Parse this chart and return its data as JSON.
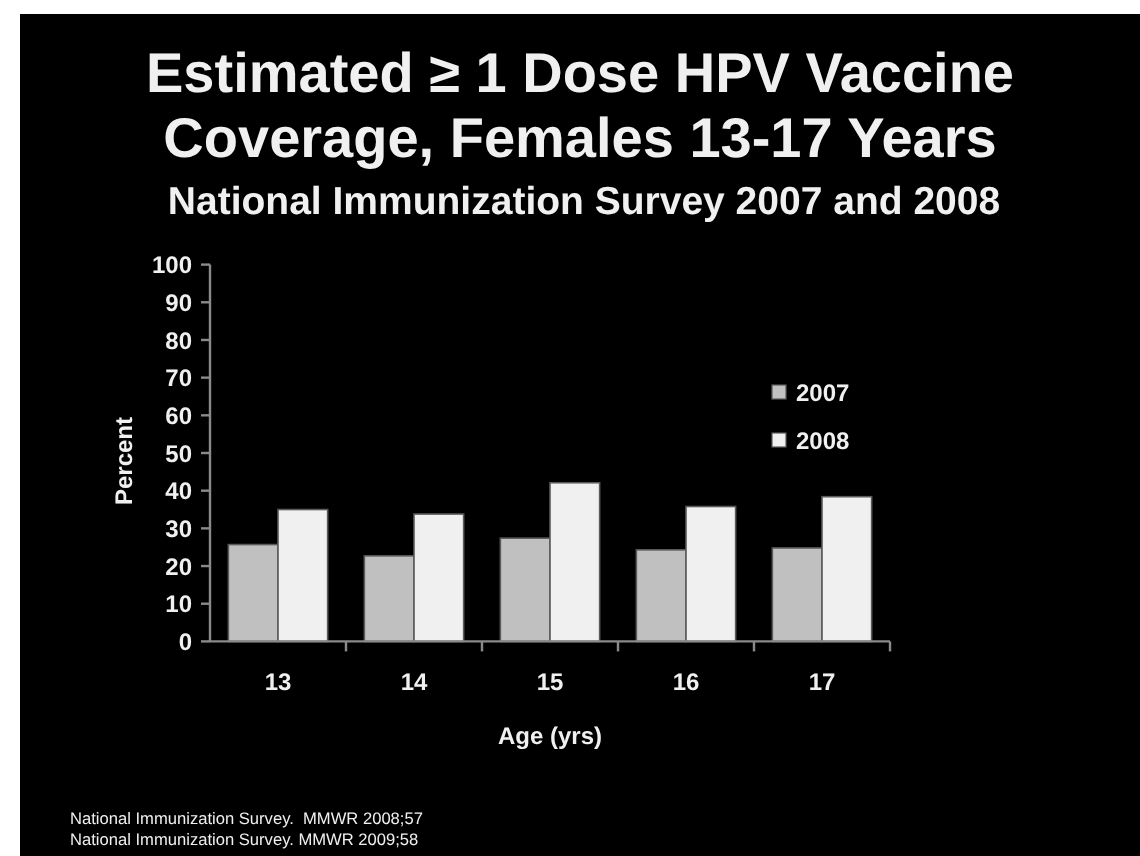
{
  "chart_data": {
    "type": "bar",
    "title": "Estimated ≥ 1 Dose HPV Vaccine Coverage, Females 13-17 Years",
    "subtitle": "National Immunization Survey 2007 and 2008",
    "xlabel": "Age (yrs)",
    "ylabel": "Percent",
    "categories": [
      "13",
      "14",
      "15",
      "16",
      "17"
    ],
    "series": [
      {
        "name": "2007",
        "color": "#c0c0c0",
        "values": [
          25.7,
          22.7,
          27.4,
          24.3,
          24.8
        ]
      },
      {
        "name": "2008",
        "color": "#f0f0f0",
        "values": [
          35.0,
          33.8,
          42.1,
          35.8,
          38.4
        ]
      }
    ],
    "ylim": [
      0,
      100
    ],
    "yticks": [
      0,
      10,
      20,
      30,
      40,
      50,
      60,
      70,
      80,
      90,
      100
    ],
    "legend": "right",
    "annotations": [
      "National Immunization Survey.  MMWR 2008;57",
      "National Immunization Survey. MMWR 2009;58"
    ]
  }
}
